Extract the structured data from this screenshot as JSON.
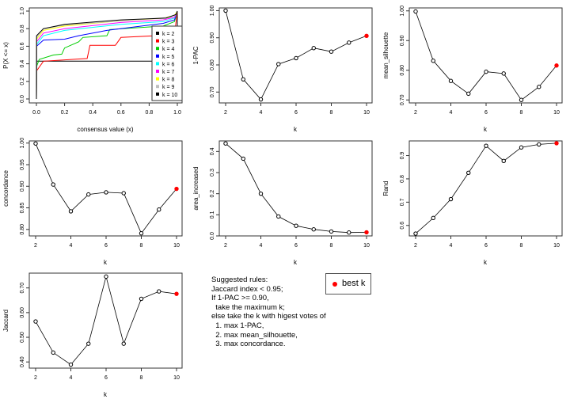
{
  "chart_data": [
    {
      "type": "line",
      "subtype": "ecdf",
      "xlabel": "consensus value (x)",
      "ylabel": "P(X <= x)",
      "xlim": [
        0,
        1
      ],
      "ylim": [
        0,
        1
      ],
      "xticks": [
        "0.0",
        "0.2",
        "0.4",
        "0.6",
        "0.8",
        "1.0"
      ],
      "yticks": [
        "0.0",
        "0.2",
        "0.4",
        "0.6",
        "0.8",
        "1.0"
      ],
      "legend_placement": "right",
      "series": [
        {
          "name": "k = 2",
          "color": "#000000",
          "x": [
            0,
            0.001,
            0.999,
            1
          ],
          "y": [
            0,
            0.43,
            0.43,
            1
          ]
        },
        {
          "name": "k = 3",
          "color": "#ff0000",
          "x": [
            0,
            0.001,
            0.05,
            0.36,
            0.38,
            0.56,
            0.6,
            0.98,
            1
          ],
          "y": [
            0,
            0.32,
            0.43,
            0.46,
            0.61,
            0.61,
            0.7,
            0.73,
            1
          ]
        },
        {
          "name": "k = 4",
          "color": "#00cd00",
          "x": [
            0,
            0.001,
            0.02,
            0.12,
            0.18,
            0.2,
            0.3,
            0.33,
            0.5,
            0.52,
            0.9,
            0.98,
            1
          ],
          "y": [
            0,
            0.37,
            0.45,
            0.5,
            0.51,
            0.58,
            0.65,
            0.7,
            0.72,
            0.79,
            0.83,
            0.88,
            1
          ]
        },
        {
          "name": "k = 5",
          "color": "#0000ff",
          "x": [
            0,
            0.001,
            0.05,
            0.2,
            0.3,
            0.5,
            0.9,
            0.98,
            1
          ],
          "y": [
            0,
            0.6,
            0.67,
            0.68,
            0.72,
            0.78,
            0.86,
            0.9,
            1
          ]
        },
        {
          "name": "k = 6",
          "color": "#00ffff",
          "x": [
            0,
            0.001,
            0.05,
            0.2,
            0.6,
            0.9,
            0.98,
            1
          ],
          "y": [
            0,
            0.62,
            0.72,
            0.78,
            0.85,
            0.88,
            0.92,
            1
          ]
        },
        {
          "name": "k = 7",
          "color": "#ff00ff",
          "x": [
            0,
            0.001,
            0.05,
            0.2,
            0.6,
            0.9,
            0.98,
            1
          ],
          "y": [
            0,
            0.65,
            0.75,
            0.8,
            0.87,
            0.9,
            0.93,
            1
          ]
        },
        {
          "name": "k = 8",
          "color": "#ffff00",
          "x": [
            0,
            0.001,
            0.05,
            0.2,
            0.6,
            0.9,
            0.98,
            1
          ],
          "y": [
            0,
            0.68,
            0.78,
            0.83,
            0.89,
            0.92,
            0.95,
            1
          ]
        },
        {
          "name": "k = 9",
          "color": "#bebebe",
          "x": [
            0,
            0.001,
            0.05,
            0.2,
            0.6,
            0.95,
            0.99,
            1
          ],
          "y": [
            0,
            0.7,
            0.8,
            0.84,
            0.89,
            0.93,
            0.96,
            1
          ]
        },
        {
          "name": "k = 10",
          "color": "#000000",
          "x": [
            0,
            0.001,
            0.05,
            0.2,
            0.6,
            0.92,
            0.99,
            1
          ],
          "y": [
            0,
            0.72,
            0.8,
            0.85,
            0.9,
            0.92,
            0.96,
            1
          ]
        }
      ]
    },
    {
      "type": "line",
      "xlabel": "k",
      "ylabel": "1-PAC",
      "x": [
        2,
        3,
        4,
        5,
        6,
        7,
        8,
        9,
        10
      ],
      "values": [
        1.0,
        0.747,
        0.673,
        0.803,
        0.825,
        0.862,
        0.849,
        0.882,
        0.907
      ],
      "ylim": [
        0.66,
        1.01
      ],
      "yticks": [
        "0.70",
        "0.80",
        "0.90",
        "1.00"
      ],
      "ytick_values": [
        0.7,
        0.8,
        0.9,
        1.0
      ],
      "xticks": [
        "2",
        "4",
        "6",
        "8",
        "10"
      ],
      "best_k": 10
    },
    {
      "type": "line",
      "xlabel": "k",
      "ylabel": "mean_silhouette",
      "x": [
        2,
        3,
        4,
        5,
        6,
        7,
        8,
        9,
        10
      ],
      "values": [
        0.998,
        0.832,
        0.764,
        0.721,
        0.795,
        0.789,
        0.7,
        0.744,
        0.816
      ],
      "ylim": [
        0.69,
        1.01
      ],
      "yticks": [
        "0.70",
        "0.80",
        "0.90",
        "1.00"
      ],
      "ytick_values": [
        0.7,
        0.8,
        0.9,
        1.0
      ],
      "xticks": [
        "2",
        "4",
        "6",
        "8",
        "10"
      ],
      "best_k": 10
    },
    {
      "type": "line",
      "xlabel": "k",
      "ylabel": "concordance",
      "x": [
        2,
        3,
        4,
        5,
        6,
        7,
        8,
        9,
        10
      ],
      "values": [
        0.999,
        0.904,
        0.842,
        0.881,
        0.886,
        0.884,
        0.791,
        0.846,
        0.894
      ],
      "ylim": [
        0.785,
        1.005
      ],
      "yticks": [
        "0.80",
        "0.85",
        "0.90",
        "0.95",
        "1.00"
      ],
      "ytick_values": [
        0.8,
        0.85,
        0.9,
        0.95,
        1.0
      ],
      "xticks": [
        "2",
        "4",
        "6",
        "8",
        "10"
      ],
      "best_k": 10
    },
    {
      "type": "line",
      "xlabel": "k",
      "ylabel": "area_increased",
      "x": [
        2,
        3,
        4,
        5,
        6,
        7,
        8,
        9,
        10
      ],
      "values": [
        0.438,
        0.366,
        0.2,
        0.092,
        0.048,
        0.031,
        0.021,
        0.016,
        0.017
      ],
      "ylim": [
        0,
        0.45
      ],
      "yticks": [
        "0.0",
        "0.1",
        "0.2",
        "0.3",
        "0.4"
      ],
      "ytick_values": [
        0,
        0.1,
        0.2,
        0.3,
        0.4
      ],
      "xticks": [
        "2",
        "4",
        "6",
        "8",
        "10"
      ],
      "best_k": 10
    },
    {
      "type": "line",
      "xlabel": "k",
      "ylabel": "Rand",
      "x": [
        2,
        3,
        4,
        5,
        6,
        7,
        8,
        9,
        10
      ],
      "values": [
        0.565,
        0.632,
        0.713,
        0.826,
        0.942,
        0.877,
        0.935,
        0.948,
        0.953
      ],
      "ylim": [
        0.555,
        0.963
      ],
      "yticks": [
        "0.6",
        "0.7",
        "0.8",
        "0.9"
      ],
      "ytick_values": [
        0.6,
        0.7,
        0.8,
        0.9
      ],
      "xticks": [
        "2",
        "4",
        "6",
        "8",
        "10"
      ],
      "best_k": 10
    },
    {
      "type": "line",
      "xlabel": "k",
      "ylabel": "Jaccard",
      "x": [
        2,
        3,
        4,
        5,
        6,
        7,
        8,
        9,
        10
      ],
      "values": [
        0.564,
        0.438,
        0.389,
        0.474,
        0.746,
        0.474,
        0.656,
        0.686,
        0.676
      ],
      "ylim": [
        0.375,
        0.76
      ],
      "yticks": [
        "0.40",
        "0.50",
        "0.60",
        "0.70"
      ],
      "ytick_values": [
        0.4,
        0.5,
        0.6,
        0.7
      ],
      "xticks": [
        "2",
        "4",
        "6",
        "8",
        "10"
      ],
      "best_k": 10
    }
  ],
  "rules_text": "Suggested rules:\nJaccard index < 0.95;\nIf 1-PAC >= 0.90,\n  take the maximum k;\nelse take the k with higest votes of\n  1. max 1-PAC,\n  2. max mean_silhouette,\n  3. max concordance.",
  "best_k_legend": {
    "label": "best k",
    "color": "#ff0000"
  }
}
